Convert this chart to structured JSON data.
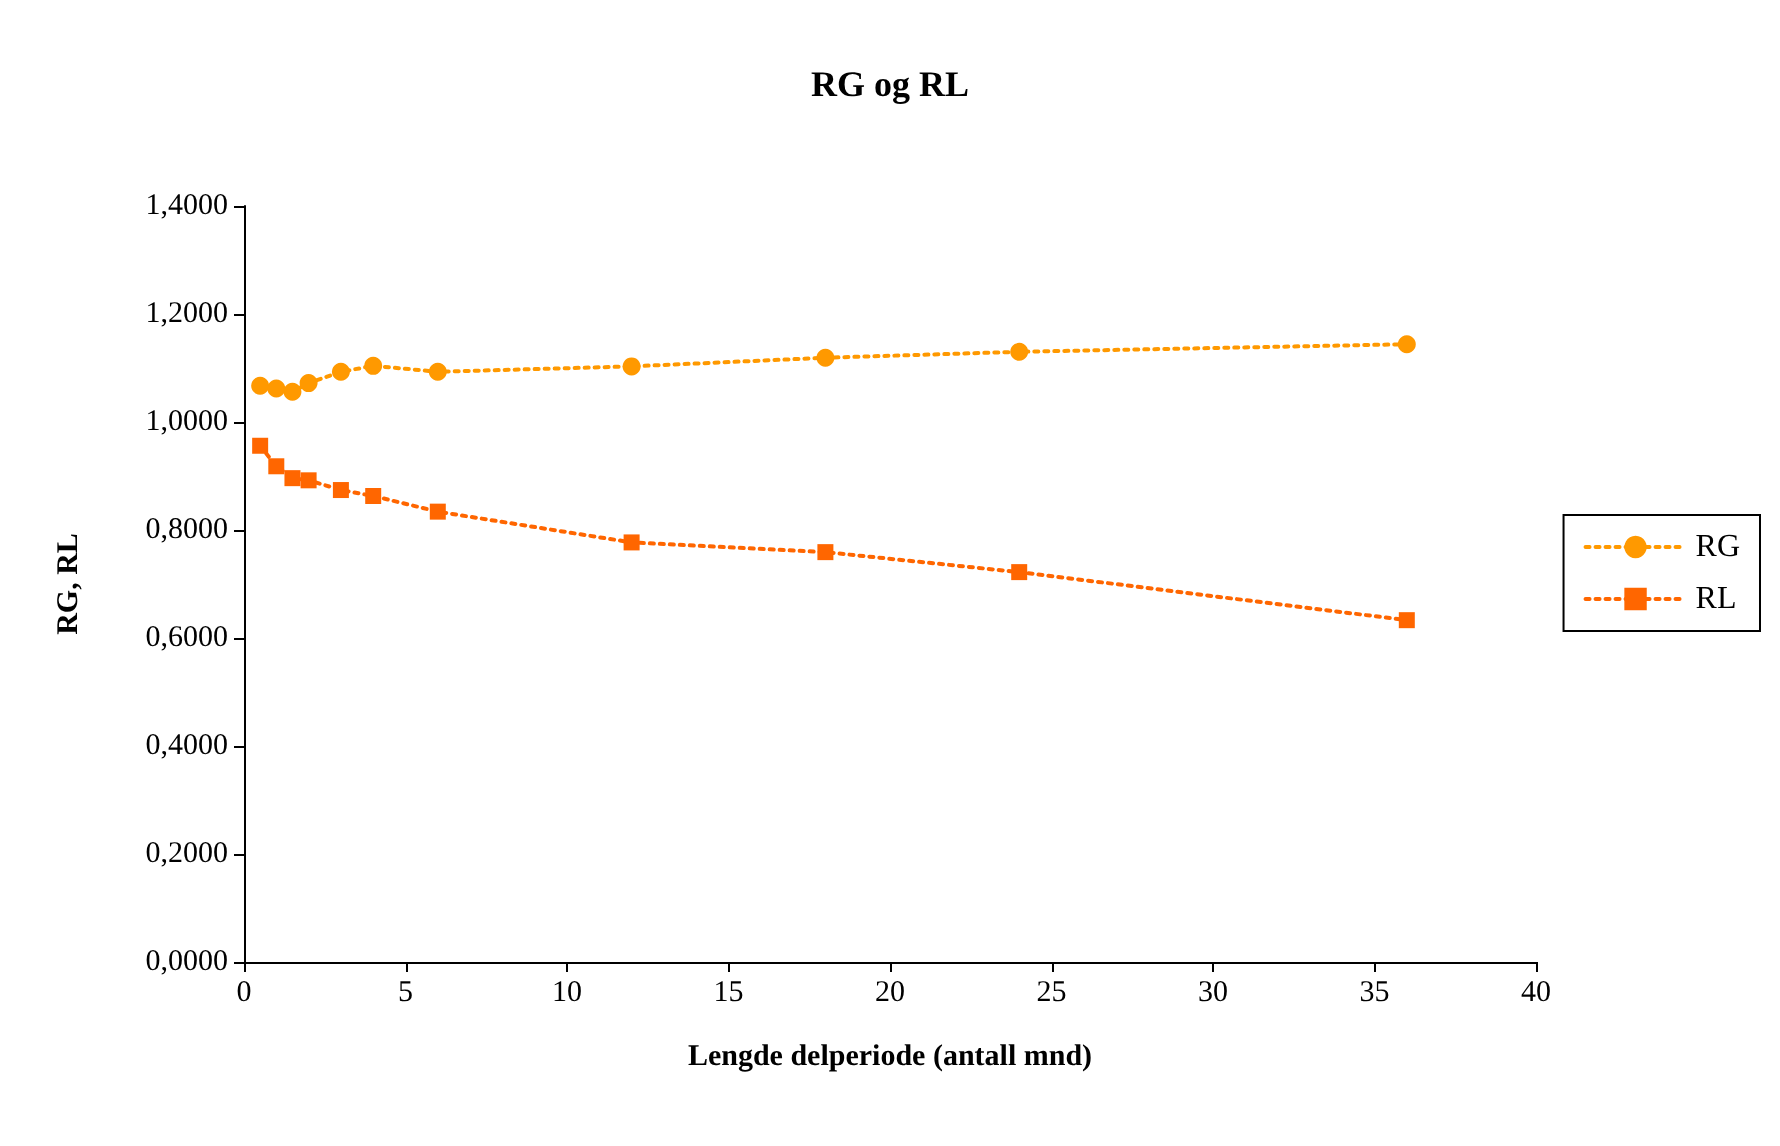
{
  "chart_data": {
    "type": "line",
    "title": "RG og RL",
    "xlabel": "Lengde delperiode (antall mnd)",
    "ylabel": "RG, RL",
    "x": [
      0.5,
      1,
      1.5,
      2,
      3,
      4,
      6,
      12,
      18,
      24,
      36
    ],
    "series": [
      {
        "name": "RG",
        "color": "#ff9900",
        "marker": "circle",
        "values": [
          1.067,
          1.062,
          1.056,
          1.072,
          1.093,
          1.104,
          1.093,
          1.103,
          1.119,
          1.13,
          1.144
        ]
      },
      {
        "name": "RL",
        "color": "#ff6600",
        "marker": "square",
        "values": [
          0.956,
          0.918,
          0.896,
          0.892,
          0.874,
          0.863,
          0.834,
          0.777,
          0.759,
          0.722,
          0.633
        ]
      }
    ],
    "xlim": [
      0,
      40
    ],
    "xticks": [
      0,
      5,
      10,
      15,
      20,
      25,
      30,
      35,
      40
    ],
    "ylim": [
      0,
      1.4
    ],
    "yticks": [
      {
        "value": 0,
        "label": "0,0000"
      },
      {
        "value": 0.2,
        "label": "0,2000"
      },
      {
        "value": 0.4,
        "label": "0,4000"
      },
      {
        "value": 0.6,
        "label": "0,6000"
      },
      {
        "value": 0.8,
        "label": "0,8000"
      },
      {
        "value": 1.0,
        "label": "1,0000"
      },
      {
        "value": 1.2,
        "label": "1,2000"
      },
      {
        "value": 1.4,
        "label": "1,4000"
      }
    ],
    "grid": false,
    "legend": "right",
    "line_style": "dotted"
  }
}
